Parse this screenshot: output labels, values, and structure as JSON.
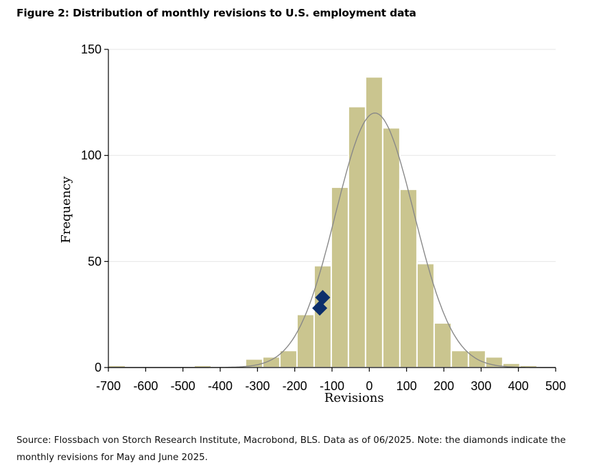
{
  "figure": {
    "title": "Figure 2: Distribution of monthly revisions to U.S. employment data",
    "source_note": "Source: Flossbach von Storch Research Institute, Macrobond, BLS. Data as of 06/2025. Note: the diamonds indicate the monthly revisions for May and June 2025."
  },
  "chart_data": {
    "type": "bar",
    "title": "Figure 2: Distribution of monthly revisions to U.S. employment data",
    "xlabel": "Revisions",
    "ylabel": "Frequency",
    "xlim": [
      -700,
      500
    ],
    "ylim": [
      0,
      150
    ],
    "x_ticks": [
      "-700",
      "-600",
      "-500",
      "-400",
      "-300",
      "-200",
      "-100",
      "0",
      "100",
      "200",
      "300",
      "400",
      "500"
    ],
    "y_ticks": [
      "0",
      "50",
      "100",
      "150"
    ],
    "bin_width": 46,
    "bins": [
      {
        "start": -700,
        "value": 1
      },
      {
        "start": -654,
        "value": 0
      },
      {
        "start": -608,
        "value": 0
      },
      {
        "start": -562,
        "value": 0
      },
      {
        "start": -516,
        "value": 0
      },
      {
        "start": -470,
        "value": 1
      },
      {
        "start": -424,
        "value": 0
      },
      {
        "start": -378,
        "value": 0
      },
      {
        "start": -332,
        "value": 4
      },
      {
        "start": -286,
        "value": 5
      },
      {
        "start": -240,
        "value": 8
      },
      {
        "start": -194,
        "value": 25
      },
      {
        "start": -148,
        "value": 48
      },
      {
        "start": -102,
        "value": 85
      },
      {
        "start": -56,
        "value": 123
      },
      {
        "start": -10,
        "value": 137
      },
      {
        "start": 36,
        "value": 113
      },
      {
        "start": 82,
        "value": 84
      },
      {
        "start": 128,
        "value": 49
      },
      {
        "start": 174,
        "value": 21
      },
      {
        "start": 220,
        "value": 8
      },
      {
        "start": 266,
        "value": 8
      },
      {
        "start": 312,
        "value": 5
      },
      {
        "start": 358,
        "value": 2
      },
      {
        "start": 404,
        "value": 1
      }
    ],
    "normal_curve": {
      "mean": 15,
      "sd": 105,
      "peak": 120
    },
    "markers": [
      {
        "label": "May 2025",
        "x": -125,
        "y": 33
      },
      {
        "label": "June 2025",
        "x": -133,
        "y": 28
      }
    ],
    "colors": {
      "bars": "#cac58f",
      "bar_edge": "#ffffff",
      "curve": "#888888",
      "markers": "#0d2f6b",
      "grid": "#e6e6e6"
    },
    "grid": true,
    "legend": "none"
  }
}
